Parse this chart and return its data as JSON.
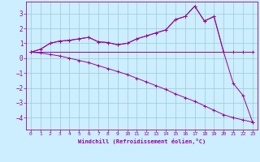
{
  "x": [
    0,
    1,
    2,
    3,
    4,
    5,
    6,
    7,
    8,
    9,
    10,
    11,
    12,
    13,
    14,
    15,
    16,
    17,
    18,
    19,
    20,
    21,
    22,
    23
  ],
  "line1": [
    0.4,
    0.6,
    1.0,
    1.15,
    1.2,
    1.3,
    1.4,
    1.1,
    1.05,
    0.9,
    1.0,
    1.3,
    1.5,
    1.7,
    1.9,
    2.6,
    2.8,
    3.5,
    2.5,
    2.8,
    0.4,
    0.4,
    0.4,
    0.4
  ],
  "line2": [
    0.4,
    0.6,
    1.0,
    1.15,
    1.2,
    1.3,
    1.4,
    1.1,
    1.05,
    0.9,
    1.0,
    1.3,
    1.5,
    1.7,
    1.9,
    2.6,
    2.8,
    3.5,
    2.5,
    2.8,
    0.4,
    -1.7,
    -2.5,
    -4.3
  ],
  "line3": [
    0.4,
    0.4,
    0.4,
    0.4,
    0.4,
    0.4,
    0.4,
    0.4,
    0.4,
    0.4,
    0.4,
    0.4,
    0.4,
    0.4,
    0.4,
    0.4,
    0.4,
    0.4,
    0.4,
    0.4,
    0.4,
    0.4,
    0.4,
    0.4
  ],
  "line4": [
    0.4,
    0.35,
    0.25,
    0.15,
    0.0,
    -0.15,
    -0.3,
    -0.5,
    -0.7,
    -0.9,
    -1.1,
    -1.35,
    -1.6,
    -1.85,
    -2.1,
    -2.4,
    -2.65,
    -2.9,
    -3.2,
    -3.5,
    -3.8,
    -4.0,
    -4.15,
    -4.3
  ],
  "color": "#990099",
  "bg_color": "#cceeff",
  "grid_color": "#99cccc",
  "xlabel": "Windchill (Refroidissement éolien,°C)",
  "ylim": [
    -4.8,
    3.8
  ],
  "xlim": [
    -0.5,
    23.5
  ],
  "yticks": [
    -4,
    -3,
    -2,
    -1,
    0,
    1,
    2,
    3
  ],
  "xticks": [
    0,
    1,
    2,
    3,
    4,
    5,
    6,
    7,
    8,
    9,
    10,
    11,
    12,
    13,
    14,
    15,
    16,
    17,
    18,
    19,
    20,
    21,
    22,
    23
  ]
}
